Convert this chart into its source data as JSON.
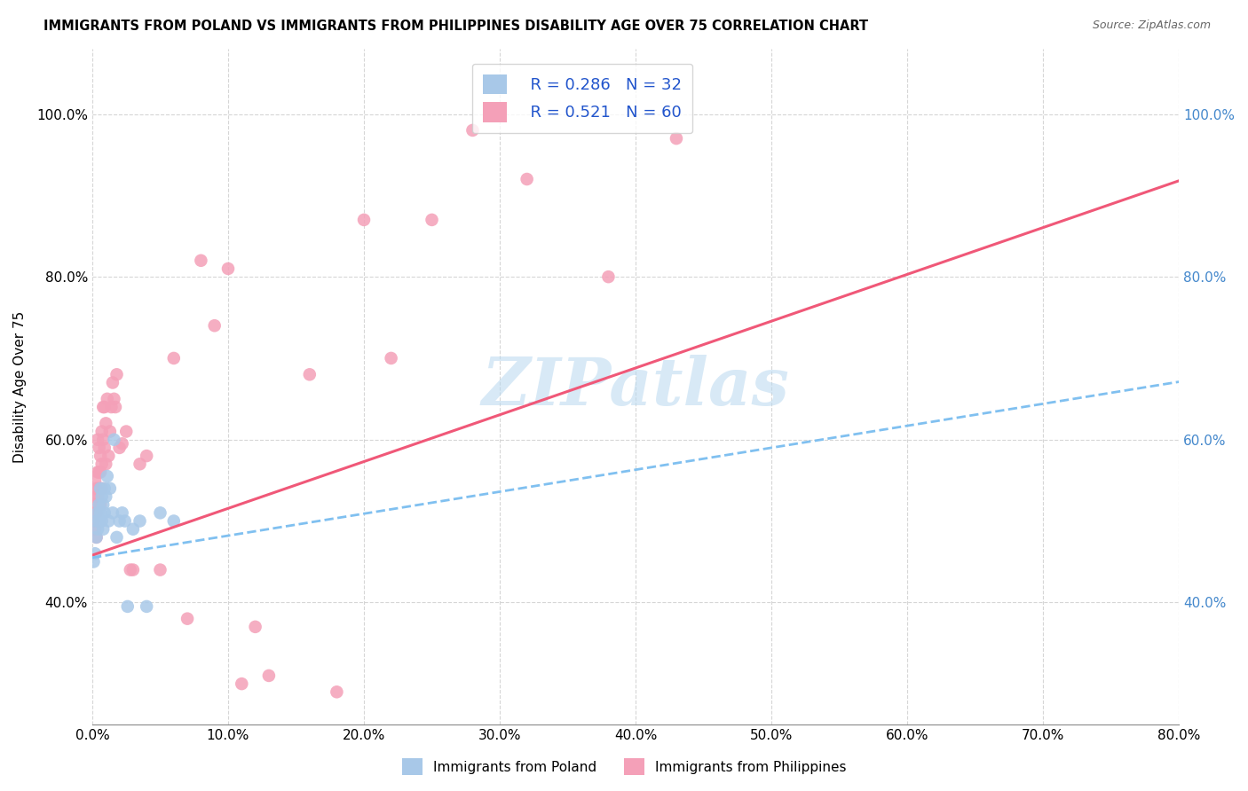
{
  "title": "IMMIGRANTS FROM POLAND VS IMMIGRANTS FROM PHILIPPINES DISABILITY AGE OVER 75 CORRELATION CHART",
  "source": "Source: ZipAtlas.com",
  "ylabel_label": "Disability Age Over 75",
  "x_min": 0.0,
  "x_max": 0.8,
  "y_min": 0.25,
  "y_max": 1.08,
  "poland_R": 0.286,
  "poland_N": 32,
  "philippines_R": 0.521,
  "philippines_N": 60,
  "poland_color": "#a8c8e8",
  "philippines_color": "#f4a0b8",
  "poland_line_color": "#80c0f0",
  "philippines_line_color": "#f05878",
  "poland_scatter_x": [
    0.001,
    0.002,
    0.003,
    0.003,
    0.004,
    0.004,
    0.005,
    0.005,
    0.006,
    0.006,
    0.007,
    0.007,
    0.008,
    0.008,
    0.009,
    0.009,
    0.01,
    0.011,
    0.012,
    0.013,
    0.015,
    0.016,
    0.018,
    0.02,
    0.022,
    0.024,
    0.026,
    0.03,
    0.035,
    0.04,
    0.05,
    0.06
  ],
  "poland_scatter_y": [
    0.45,
    0.46,
    0.48,
    0.5,
    0.49,
    0.51,
    0.5,
    0.52,
    0.51,
    0.54,
    0.5,
    0.53,
    0.52,
    0.49,
    0.51,
    0.54,
    0.53,
    0.555,
    0.5,
    0.54,
    0.51,
    0.6,
    0.48,
    0.5,
    0.51,
    0.5,
    0.395,
    0.49,
    0.5,
    0.395,
    0.51,
    0.5
  ],
  "philippines_scatter_x": [
    0.001,
    0.001,
    0.001,
    0.002,
    0.002,
    0.002,
    0.003,
    0.003,
    0.003,
    0.004,
    0.004,
    0.004,
    0.005,
    0.005,
    0.005,
    0.006,
    0.006,
    0.006,
    0.007,
    0.007,
    0.007,
    0.008,
    0.008,
    0.009,
    0.009,
    0.01,
    0.01,
    0.011,
    0.012,
    0.013,
    0.014,
    0.015,
    0.016,
    0.017,
    0.018,
    0.02,
    0.022,
    0.025,
    0.028,
    0.03,
    0.035,
    0.04,
    0.05,
    0.06,
    0.07,
    0.08,
    0.09,
    0.1,
    0.11,
    0.12,
    0.13,
    0.16,
    0.18,
    0.2,
    0.22,
    0.25,
    0.28,
    0.32,
    0.38,
    0.43
  ],
  "philippines_scatter_y": [
    0.5,
    0.51,
    0.52,
    0.49,
    0.53,
    0.55,
    0.48,
    0.51,
    0.54,
    0.53,
    0.56,
    0.6,
    0.54,
    0.59,
    0.56,
    0.58,
    0.52,
    0.56,
    0.54,
    0.61,
    0.57,
    0.6,
    0.64,
    0.59,
    0.64,
    0.57,
    0.62,
    0.65,
    0.58,
    0.61,
    0.64,
    0.67,
    0.65,
    0.64,
    0.68,
    0.59,
    0.595,
    0.61,
    0.44,
    0.44,
    0.57,
    0.58,
    0.44,
    0.7,
    0.38,
    0.82,
    0.74,
    0.81,
    0.3,
    0.37,
    0.31,
    0.68,
    0.29,
    0.87,
    0.7,
    0.87,
    0.98,
    0.92,
    0.8,
    0.97
  ]
}
